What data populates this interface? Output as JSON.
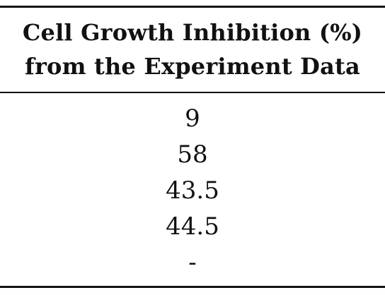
{
  "table": {
    "header": {
      "line1": "Cell Growth Inhibition (%)",
      "line2": "from the Experiment Data"
    },
    "rows": [
      "9",
      "58",
      "43.5",
      "44.5",
      "-"
    ]
  }
}
